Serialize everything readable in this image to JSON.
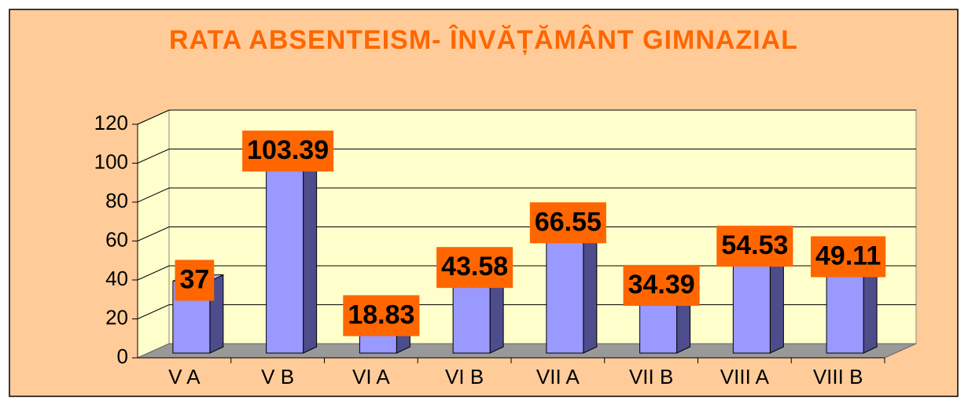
{
  "chart_data": {
    "type": "bar3d",
    "title": "RATA ABSENTEISM- ÎNVĂȚĂMÂNT GIMNAZIAL",
    "categories": [
      "V A",
      "V B",
      "VI A",
      "VI B",
      "VII A",
      "VII B",
      "VIII A",
      "VIII B"
    ],
    "values": [
      37,
      103.39,
      18.83,
      43.58,
      66.55,
      34.39,
      54.53,
      49.11
    ],
    "color": "#9999ff",
    "label_color": "#ff6600",
    "ylim": [
      0,
      120
    ],
    "yticks": [
      0,
      20,
      40,
      60,
      80,
      100,
      120
    ],
    "grid": true
  }
}
